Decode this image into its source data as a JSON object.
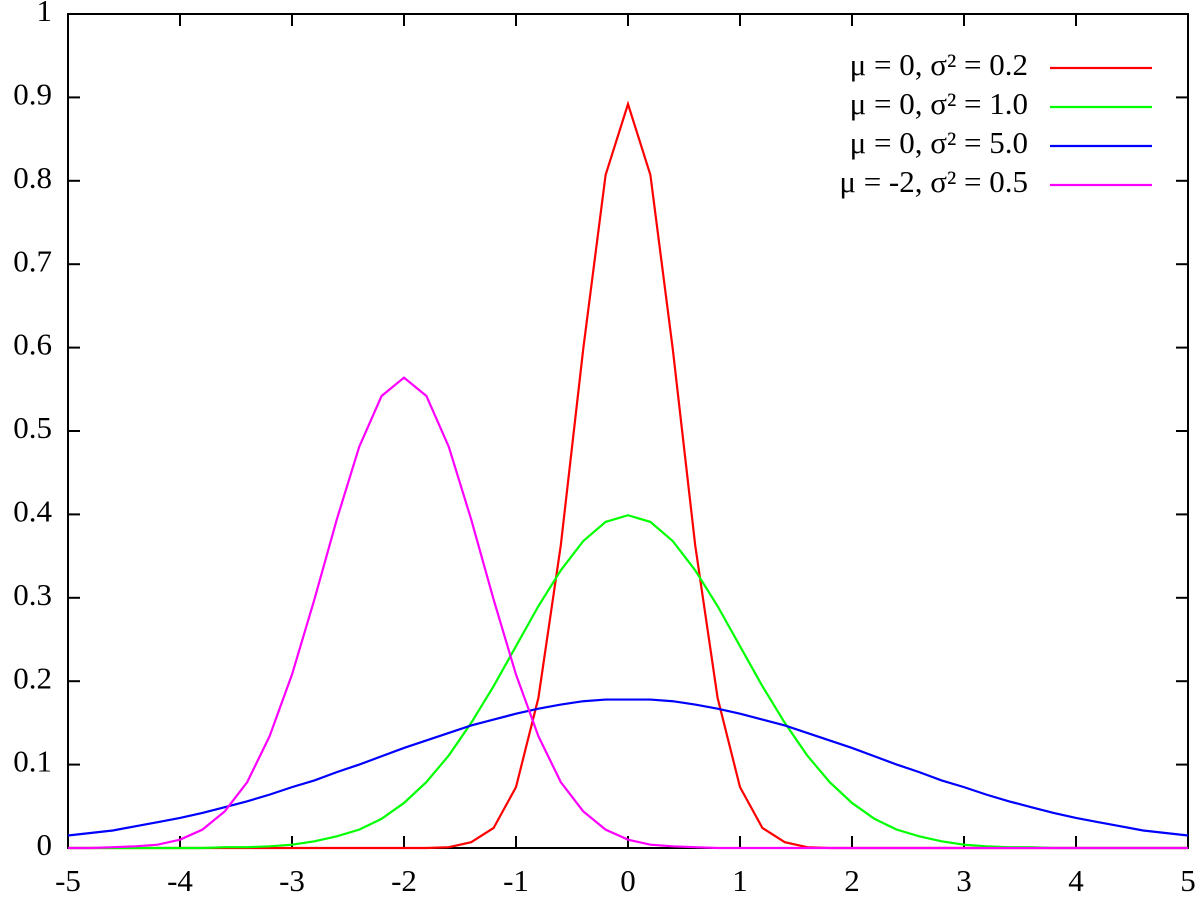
{
  "chart_data": {
    "type": "line",
    "x": [
      -5,
      -4.8,
      -4.6,
      -4.4,
      -4.2,
      -4,
      -3.8,
      -3.6,
      -3.4,
      -3.2,
      -3,
      -2.8,
      -2.6,
      -2.4,
      -2.2,
      -2,
      -1.8,
      -1.6,
      -1.4,
      -1.2,
      -1,
      -0.8,
      -0.6,
      -0.4,
      -0.2,
      0,
      0.2,
      0.4,
      0.6,
      0.8,
      1,
      1.2,
      1.4,
      1.6,
      1.8,
      2,
      2.2,
      2.4,
      2.6,
      2.8,
      3,
      3.2,
      3.4,
      3.6,
      3.8,
      4,
      4.2,
      4.4,
      4.6,
      4.8,
      5
    ],
    "series": [
      {
        "name": "μ =  0, σ² = 0.2",
        "color": "#ff0000",
        "values": [
          0,
          0,
          0,
          0,
          0,
          0,
          0,
          0,
          0,
          0,
          0,
          0,
          0,
          0,
          0,
          0,
          0,
          0.001,
          0.007,
          0.024,
          0.073,
          0.18,
          0.363,
          0.598,
          0.807,
          0.892,
          0.807,
          0.598,
          0.363,
          0.18,
          0.073,
          0.024,
          0.007,
          0.001,
          0,
          0,
          0,
          0,
          0,
          0,
          0,
          0,
          0,
          0,
          0,
          0,
          0,
          0,
          0,
          0,
          0
        ]
      },
      {
        "name": "μ =  0, σ² = 1.0",
        "color": "#00ff00",
        "values": [
          0,
          0,
          0,
          0,
          0,
          0,
          0,
          0.001,
          0.001,
          0.002,
          0.004,
          0.008,
          0.014,
          0.022,
          0.035,
          0.054,
          0.079,
          0.111,
          0.15,
          0.194,
          0.242,
          0.29,
          0.333,
          0.368,
          0.391,
          0.399,
          0.391,
          0.368,
          0.333,
          0.29,
          0.242,
          0.194,
          0.15,
          0.111,
          0.079,
          0.054,
          0.035,
          0.022,
          0.014,
          0.008,
          0.004,
          0.002,
          0.001,
          0.001,
          0,
          0,
          0,
          0,
          0,
          0,
          0
        ]
      },
      {
        "name": "μ =  0, σ² = 5.0",
        "color": "#0000ff",
        "values": [
          0.015,
          0.018,
          0.021,
          0.026,
          0.031,
          0.036,
          0.042,
          0.049,
          0.056,
          0.064,
          0.073,
          0.081,
          0.091,
          0.1,
          0.11,
          0.12,
          0.129,
          0.138,
          0.147,
          0.154,
          0.161,
          0.167,
          0.172,
          0.176,
          0.178,
          0.178,
          0.178,
          0.176,
          0.172,
          0.167,
          0.161,
          0.154,
          0.147,
          0.138,
          0.129,
          0.12,
          0.11,
          0.1,
          0.091,
          0.081,
          0.073,
          0.064,
          0.056,
          0.049,
          0.042,
          0.036,
          0.031,
          0.026,
          0.021,
          0.018,
          0.015
        ]
      },
      {
        "name": "μ = -2, σ² = 0.5",
        "color": "#ff00ff",
        "values": [
          0,
          0,
          0.001,
          0.002,
          0.004,
          0.01,
          0.022,
          0.044,
          0.079,
          0.134,
          0.208,
          0.298,
          0.394,
          0.481,
          0.542,
          0.564,
          0.542,
          0.481,
          0.394,
          0.298,
          0.208,
          0.134,
          0.079,
          0.044,
          0.022,
          0.01,
          0.004,
          0.002,
          0.001,
          0,
          0,
          0,
          0,
          0,
          0,
          0,
          0,
          0,
          0,
          0,
          0,
          0,
          0,
          0,
          0,
          0,
          0,
          0,
          0,
          0,
          0
        ]
      }
    ],
    "xlim": [
      -5,
      5
    ],
    "xticks": [
      -5,
      -4,
      -3,
      -2,
      -1,
      0,
      1,
      2,
      3,
      4,
      5
    ],
    "ylim": [
      0,
      1
    ],
    "yticks": [
      0,
      0.1,
      0.2,
      0.3,
      0.4,
      0.5,
      0.6,
      0.7,
      0.8,
      0.9,
      1
    ],
    "legend": "top-right"
  }
}
